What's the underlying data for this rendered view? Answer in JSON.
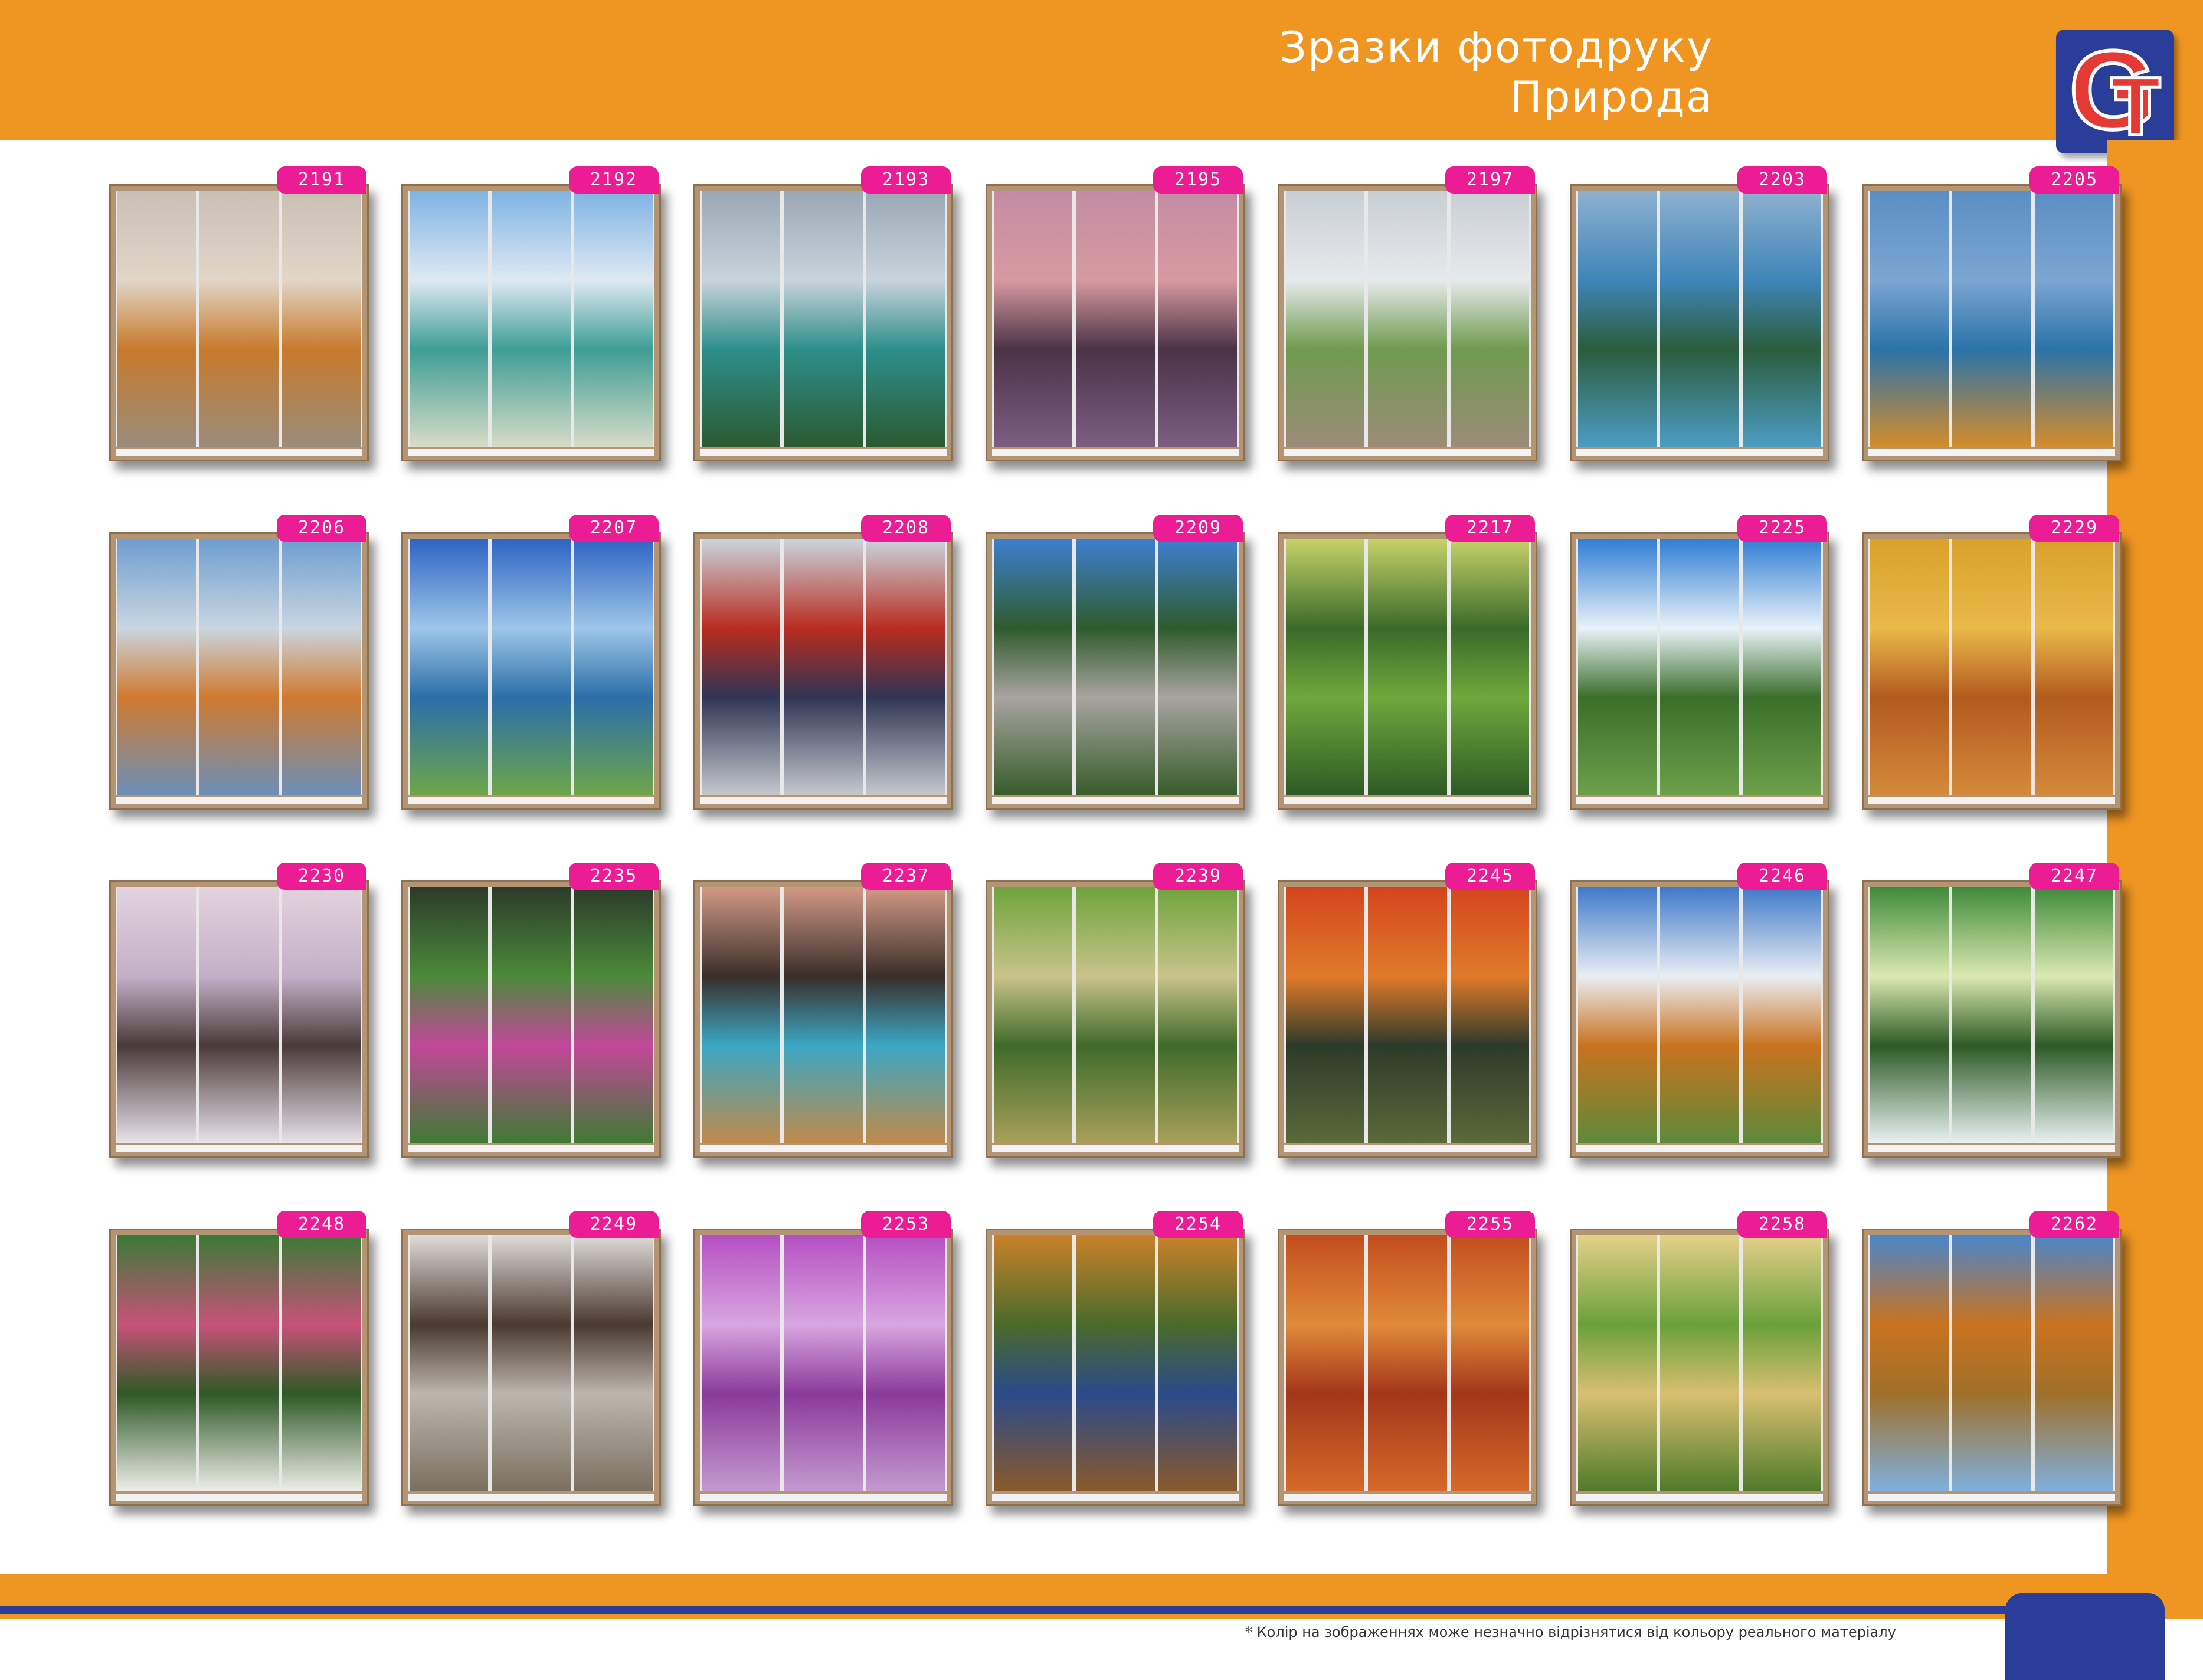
{
  "header": {
    "title_line1": "Зразки фотодруку",
    "title_line2": "Природа"
  },
  "logo": {
    "letter1": "G",
    "letter2": "T"
  },
  "footnote": "* Колір на зображеннях може незначно відрізнятися від кольору реального матеріалу",
  "colors": {
    "header": "#ef9622",
    "brand_blue": "#2a3d98",
    "tag": "#ec1c94"
  },
  "samples": [
    {
      "code": "2191",
      "colors": [
        "#c9bfb4",
        "#e1d6c8",
        "#c77a2a",
        "#9a8c7d"
      ]
    },
    {
      "code": "2192",
      "colors": [
        "#7eb3e3",
        "#dfe9f3",
        "#3d9e95",
        "#d8dbc8"
      ]
    },
    {
      "code": "2193",
      "colors": [
        "#9aa7b4",
        "#c9d3db",
        "#2d8f8a",
        "#2c5a32"
      ]
    },
    {
      "code": "2195",
      "colors": [
        "#c38ca3",
        "#d69aa0",
        "#4a3346",
        "#7b5e82"
      ]
    },
    {
      "code": "2197",
      "colors": [
        "#c9ced3",
        "#e7eaec",
        "#6f9a4f",
        "#9c8c78"
      ]
    },
    {
      "code": "2203",
      "colors": [
        "#8fb1cf",
        "#3f85b8",
        "#2b5d3c",
        "#4d9cc4"
      ]
    },
    {
      "code": "2205",
      "colors": [
        "#5a8ec4",
        "#7ba6d2",
        "#2a73a8",
        "#d38d2b"
      ]
    },
    {
      "code": "2206",
      "colors": [
        "#6e9dd0",
        "#c9d6e0",
        "#d07a2e",
        "#6b8fb8"
      ]
    },
    {
      "code": "2207",
      "colors": [
        "#2d63c4",
        "#9ec6e9",
        "#2b6ea8",
        "#6ea54a"
      ]
    },
    {
      "code": "2208",
      "colors": [
        "#c9d6e0",
        "#b82c1f",
        "#2f3555",
        "#c5c8cc"
      ]
    },
    {
      "code": "2209",
      "colors": [
        "#3d7fd0",
        "#2f5b2d",
        "#a9a4a0",
        "#375c2b"
      ]
    },
    {
      "code": "2217",
      "colors": [
        "#c9d26a",
        "#3a6a2a",
        "#6fa83c",
        "#2d5a25"
      ]
    },
    {
      "code": "2225",
      "colors": [
        "#2f7ed4",
        "#e9f2f9",
        "#3a6e2b",
        "#6da04a"
      ]
    },
    {
      "code": "2229",
      "colors": [
        "#d9a12a",
        "#e9b94a",
        "#b35a1e",
        "#d48a3a"
      ]
    },
    {
      "code": "2230",
      "colors": [
        "#e3d3de",
        "#c4b0c6",
        "#4a3a3a",
        "#e8e2ea"
      ]
    },
    {
      "code": "2235",
      "colors": [
        "#2c3a2a",
        "#4b8a3a",
        "#c2479a",
        "#3f7a35"
      ]
    },
    {
      "code": "2237",
      "colors": [
        "#d39a86",
        "#3a2e2a",
        "#3aa7c4",
        "#c08a4a"
      ]
    },
    {
      "code": "2239",
      "colors": [
        "#6fa33c",
        "#c9c38a",
        "#3f6a2a",
        "#a8a05a"
      ]
    },
    {
      "code": "2245",
      "colors": [
        "#d4451e",
        "#e07a2a",
        "#2d3a2a",
        "#5a6a3a"
      ]
    },
    {
      "code": "2246",
      "colors": [
        "#3f79c9",
        "#e9eef3",
        "#c9731e",
        "#5d8a3a"
      ]
    },
    {
      "code": "2247",
      "colors": [
        "#3f8a3a",
        "#dbe9b0",
        "#2d5a25",
        "#e8f1f1"
      ]
    },
    {
      "code": "2248",
      "colors": [
        "#3a7a35",
        "#c7527a",
        "#2d5a25",
        "#eeeeea"
      ]
    },
    {
      "code": "2249",
      "colors": [
        "#e0dcd8",
        "#4a3a30",
        "#bcb6ae",
        "#7a7060"
      ]
    },
    {
      "code": "2253",
      "colors": [
        "#b54fc2",
        "#d8a6e0",
        "#8a3a9a",
        "#c49ad0"
      ]
    },
    {
      "code": "2254",
      "colors": [
        "#c9822a",
        "#4a6a2a",
        "#2a4a8a",
        "#8a5a2a"
      ]
    },
    {
      "code": "2255",
      "colors": [
        "#c44d1e",
        "#e08a3a",
        "#a3361a",
        "#d66a2a"
      ]
    },
    {
      "code": "2258",
      "colors": [
        "#e6d08a",
        "#6aa03a",
        "#d8c070",
        "#4f7a2a"
      ]
    },
    {
      "code": "2262",
      "colors": [
        "#4a86c9",
        "#c9731e",
        "#a0702a",
        "#7fb0dd"
      ]
    }
  ]
}
